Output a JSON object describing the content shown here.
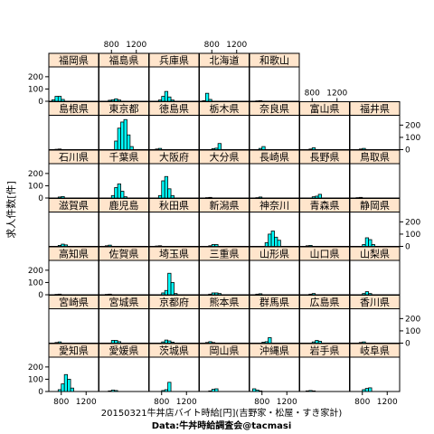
{
  "chart_data": {
    "type": "bar",
    "xlabel": "20150321牛丼店バイト時給[円](吉野家・松屋・すき家計)",
    "ylabel": "求人件数[件]",
    "caption": "Data:牛丼時給調査会@tacmasi",
    "x_ticks": [
      800,
      1200
    ],
    "x_tick_labels": [
      "800",
      "1200"
    ],
    "y_ticks": [
      0,
      100,
      200
    ],
    "y_tick_labels": [
      "0",
      "100",
      "200"
    ],
    "xlim": [
      600,
      1400
    ],
    "ylim": [
      0,
      280
    ],
    "bin_width": 50,
    "layout": {
      "columns": 7,
      "rows": 7,
      "panel_count": 47
    },
    "panels": [
      {
        "name": "愛知県",
        "bins": [
          {
            "x": 775,
            "y": 15
          },
          {
            "x": 825,
            "y": 62
          },
          {
            "x": 875,
            "y": 138
          },
          {
            "x": 925,
            "y": 100
          },
          {
            "x": 975,
            "y": 28
          }
        ]
      },
      {
        "name": "愛媛県",
        "bins": [
          {
            "x": 775,
            "y": 5
          },
          {
            "x": 825,
            "y": 12
          },
          {
            "x": 875,
            "y": 8
          }
        ]
      },
      {
        "name": "茨城県",
        "bins": [
          {
            "x": 825,
            "y": 8
          },
          {
            "x": 875,
            "y": 15
          },
          {
            "x": 925,
            "y": 75
          }
        ]
      },
      {
        "name": "岡山県",
        "bins": [
          {
            "x": 775,
            "y": 5
          },
          {
            "x": 825,
            "y": 18
          },
          {
            "x": 875,
            "y": 22
          }
        ]
      },
      {
        "name": "沖縄県",
        "bins": [
          {
            "x": 675,
            "y": 22
          },
          {
            "x": 725,
            "y": 12
          },
          {
            "x": 775,
            "y": 5
          }
        ]
      },
      {
        "name": "岩手県",
        "bins": [
          {
            "x": 725,
            "y": 5
          },
          {
            "x": 775,
            "y": 8
          },
          {
            "x": 825,
            "y": 5
          }
        ]
      },
      {
        "name": "岐阜県",
        "bins": [
          {
            "x": 825,
            "y": 15
          },
          {
            "x": 875,
            "y": 25
          },
          {
            "x": 925,
            "y": 30
          }
        ]
      },
      {
        "name": "宮崎県",
        "bins": [
          {
            "x": 725,
            "y": 5
          },
          {
            "x": 775,
            "y": 10
          }
        ]
      },
      {
        "name": "宮城県",
        "bins": [
          {
            "x": 825,
            "y": 22
          },
          {
            "x": 875,
            "y": 22
          },
          {
            "x": 925,
            "y": 12
          }
        ]
      },
      {
        "name": "京都府",
        "bins": [
          {
            "x": 825,
            "y": 10
          },
          {
            "x": 875,
            "y": 25
          },
          {
            "x": 925,
            "y": 18
          },
          {
            "x": 975,
            "y": 8
          }
        ]
      },
      {
        "name": "熊本県",
        "bins": [
          {
            "x": 725,
            "y": 5
          },
          {
            "x": 775,
            "y": 12
          },
          {
            "x": 825,
            "y": 5
          }
        ]
      },
      {
        "name": "群馬県",
        "bins": [
          {
            "x": 825,
            "y": 8
          },
          {
            "x": 875,
            "y": 12
          },
          {
            "x": 925,
            "y": 45
          }
        ]
      },
      {
        "name": "広島県",
        "bins": [
          {
            "x": 825,
            "y": 10
          },
          {
            "x": 875,
            "y": 22
          },
          {
            "x": 925,
            "y": 15
          }
        ]
      },
      {
        "name": "香川県",
        "bins": [
          {
            "x": 775,
            "y": 5
          },
          {
            "x": 825,
            "y": 10
          }
        ]
      },
      {
        "name": "高知県",
        "bins": [
          {
            "x": 725,
            "y": 3
          },
          {
            "x": 775,
            "y": 5
          }
        ]
      },
      {
        "name": "佐賀県",
        "bins": [
          {
            "x": 725,
            "y": 3
          },
          {
            "x": 775,
            "y": 5
          }
        ]
      },
      {
        "name": "埼玉県",
        "bins": [
          {
            "x": 825,
            "y": 15
          },
          {
            "x": 875,
            "y": 35
          },
          {
            "x": 925,
            "y": 175
          },
          {
            "x": 975,
            "y": 100
          },
          {
            "x": 1025,
            "y": 10
          }
        ]
      },
      {
        "name": "三重県",
        "bins": [
          {
            "x": 775,
            "y": 5
          },
          {
            "x": 825,
            "y": 15
          },
          {
            "x": 875,
            "y": 15
          },
          {
            "x": 925,
            "y": 10
          }
        ]
      },
      {
        "name": "山形県",
        "bins": [
          {
            "x": 725,
            "y": 5
          },
          {
            "x": 775,
            "y": 8
          }
        ]
      },
      {
        "name": "山口県",
        "bins": [
          {
            "x": 775,
            "y": 5
          },
          {
            "x": 825,
            "y": 10
          }
        ]
      },
      {
        "name": "山梨県",
        "bins": [
          {
            "x": 825,
            "y": 10
          },
          {
            "x": 875,
            "y": 25
          },
          {
            "x": 925,
            "y": 10
          }
        ]
      },
      {
        "name": "滋賀県",
        "bins": [
          {
            "x": 775,
            "y": 8
          },
          {
            "x": 825,
            "y": 18
          },
          {
            "x": 875,
            "y": 12
          }
        ]
      },
      {
        "name": "鹿児島",
        "bins": [
          {
            "x": 725,
            "y": 5
          },
          {
            "x": 775,
            "y": 10
          }
        ]
      },
      {
        "name": "秋田県",
        "bins": [
          {
            "x": 725,
            "y": 3
          },
          {
            "x": 775,
            "y": 5
          }
        ]
      },
      {
        "name": "新潟県",
        "bins": [
          {
            "x": 775,
            "y": 5
          },
          {
            "x": 825,
            "y": 15
          },
          {
            "x": 875,
            "y": 15
          }
        ]
      },
      {
        "name": "神奈川",
        "bins": [
          {
            "x": 875,
            "y": 30
          },
          {
            "x": 925,
            "y": 100
          },
          {
            "x": 975,
            "y": 125
          },
          {
            "x": 1025,
            "y": 75
          },
          {
            "x": 1075,
            "y": 50
          }
        ]
      },
      {
        "name": "青森県",
        "bins": [
          {
            "x": 725,
            "y": 5
          },
          {
            "x": 775,
            "y": 8
          }
        ]
      },
      {
        "name": "静岡県",
        "bins": [
          {
            "x": 825,
            "y": 15
          },
          {
            "x": 875,
            "y": 70
          },
          {
            "x": 925,
            "y": 55
          },
          {
            "x": 975,
            "y": 15
          }
        ]
      },
      {
        "name": "石川県",
        "bins": [
          {
            "x": 775,
            "y": 8
          },
          {
            "x": 825,
            "y": 12
          }
        ]
      },
      {
        "name": "千葉県",
        "bins": [
          {
            "x": 825,
            "y": 20
          },
          {
            "x": 875,
            "y": 85
          },
          {
            "x": 925,
            "y": 115
          },
          {
            "x": 975,
            "y": 55
          },
          {
            "x": 1025,
            "y": 10
          }
        ]
      },
      {
        "name": "大阪府",
        "bins": [
          {
            "x": 775,
            "y": 20
          },
          {
            "x": 825,
            "y": 140
          },
          {
            "x": 875,
            "y": 175
          },
          {
            "x": 925,
            "y": 75
          },
          {
            "x": 975,
            "y": 20
          }
        ]
      },
      {
        "name": "大分県",
        "bins": [
          {
            "x": 725,
            "y": 3
          },
          {
            "x": 775,
            "y": 5
          }
        ]
      },
      {
        "name": "長崎県",
        "bins": [
          {
            "x": 725,
            "y": 3
          },
          {
            "x": 775,
            "y": 8
          }
        ]
      },
      {
        "name": "長野県",
        "bins": [
          {
            "x": 825,
            "y": 10
          },
          {
            "x": 875,
            "y": 15
          },
          {
            "x": 925,
            "y": 30
          }
        ]
      },
      {
        "name": "鳥取県",
        "bins": [
          {
            "x": 725,
            "y": 3
          },
          {
            "x": 775,
            "y": 5
          }
        ]
      },
      {
        "name": "島根県",
        "bins": [
          {
            "x": 725,
            "y": 3
          },
          {
            "x": 775,
            "y": 5
          }
        ]
      },
      {
        "name": "東京都",
        "bins": [
          {
            "x": 875,
            "y": 70
          },
          {
            "x": 925,
            "y": 175
          },
          {
            "x": 975,
            "y": 225
          },
          {
            "x": 1025,
            "y": 245
          },
          {
            "x": 1075,
            "y": 120
          },
          {
            "x": 1125,
            "y": 25
          }
        ]
      },
      {
        "name": "徳島県",
        "bins": [
          {
            "x": 725,
            "y": 5
          },
          {
            "x": 775,
            "y": 10
          }
        ]
      },
      {
        "name": "栃木県",
        "bins": [
          {
            "x": 825,
            "y": 8
          },
          {
            "x": 875,
            "y": 12
          },
          {
            "x": 925,
            "y": 50
          }
        ]
      },
      {
        "name": "奈良県",
        "bins": [
          {
            "x": 775,
            "y": 10
          },
          {
            "x": 825,
            "y": 25
          }
        ]
      },
      {
        "name": "富山県",
        "bins": [
          {
            "x": 775,
            "y": 5
          },
          {
            "x": 825,
            "y": 15
          }
        ]
      },
      {
        "name": "福井県",
        "bins": [
          {
            "x": 775,
            "y": 5
          },
          {
            "x": 825,
            "y": 10
          }
        ]
      },
      {
        "name": "福岡県",
        "bins": [
          {
            "x": 675,
            "y": 12
          },
          {
            "x": 725,
            "y": 40
          },
          {
            "x": 775,
            "y": 40
          },
          {
            "x": 825,
            "y": 15
          }
        ]
      },
      {
        "name": "福島県",
        "bins": [
          {
            "x": 775,
            "y": 8
          },
          {
            "x": 825,
            "y": 12
          },
          {
            "x": 875,
            "y": 20
          },
          {
            "x": 925,
            "y": 10
          }
        ]
      },
      {
        "name": "兵庫県",
        "bins": [
          {
            "x": 775,
            "y": 10
          },
          {
            "x": 825,
            "y": 40
          },
          {
            "x": 875,
            "y": 80
          },
          {
            "x": 925,
            "y": 35
          },
          {
            "x": 975,
            "y": 10
          }
        ]
      },
      {
        "name": "北海道",
        "bins": [
          {
            "x": 675,
            "y": 5
          },
          {
            "x": 725,
            "y": 65
          },
          {
            "x": 775,
            "y": 15
          }
        ]
      },
      {
        "name": "和歌山",
        "bins": [
          {
            "x": 725,
            "y": 3
          },
          {
            "x": 775,
            "y": 5
          }
        ]
      }
    ]
  }
}
